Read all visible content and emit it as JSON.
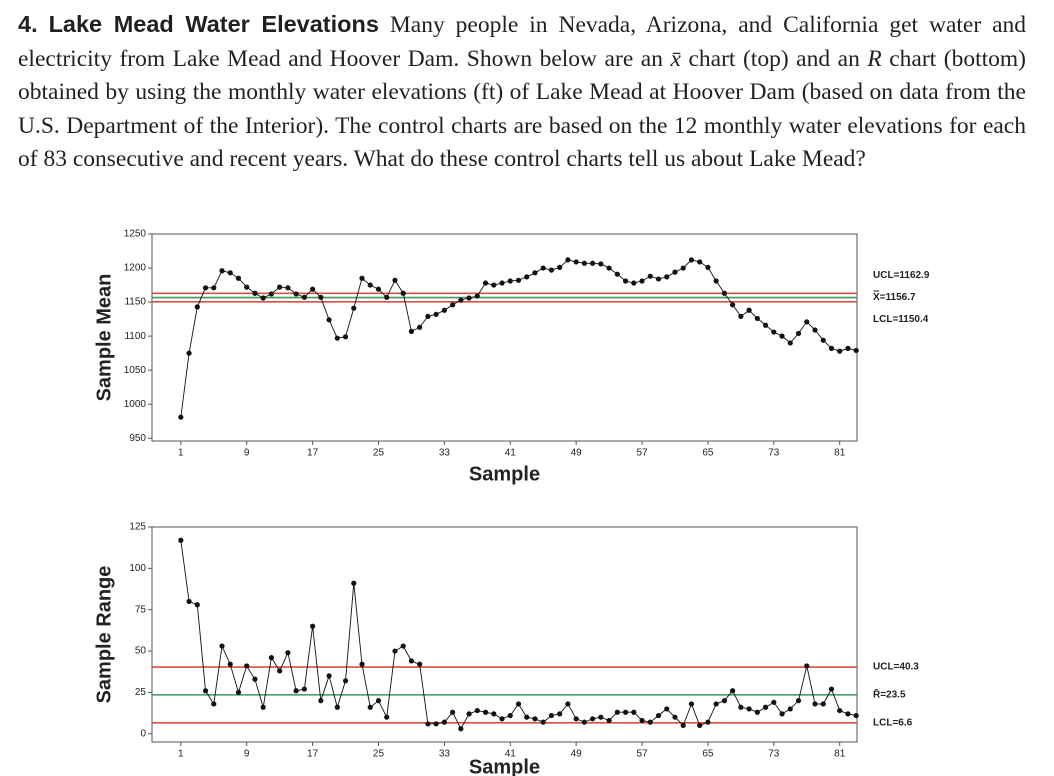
{
  "problem": {
    "number": "4.",
    "title": "Lake Mead Water Elevations",
    "body": [
      {
        "text": "Many people in Nevada, Arizona, and California get water and electricity from Lake Mead and Hoover Dam. Shown below are an ",
        "italic": false
      },
      {
        "text": "x̄",
        "italic": true
      },
      {
        "text": " chart (top) and an ",
        "italic": false
      },
      {
        "text": "R",
        "italic": true
      },
      {
        "text": " chart (bottom) obtained by using the monthly water elevations (ft) of Lake Mead at Hoover Dam (based on data from the U.S. Department of the Interior). The control charts are based on the 12 monthly water elevations for each of 83 consecutive and recent years. What do these control charts tell us about Lake Mead?",
        "italic": false
      }
    ]
  },
  "chart_data": [
    {
      "type": "line",
      "xlabel": "Sample",
      "ylabel": "Sample Mean",
      "x": [
        1,
        2,
        3,
        4,
        5,
        6,
        7,
        8,
        9,
        10,
        11,
        12,
        13,
        14,
        15,
        16,
        17,
        18,
        19,
        20,
        21,
        22,
        23,
        24,
        25,
        26,
        27,
        28,
        29,
        30,
        31,
        32,
        33,
        34,
        35,
        36,
        37,
        38,
        39,
        40,
        41,
        42,
        43,
        44,
        45,
        46,
        47,
        48,
        49,
        50,
        51,
        52,
        53,
        54,
        55,
        56,
        57,
        58,
        59,
        60,
        61,
        62,
        63,
        64,
        65,
        66,
        67,
        68,
        69,
        70,
        71,
        72,
        73,
        74,
        75,
        76,
        77,
        78,
        79,
        80,
        81,
        82,
        83
      ],
      "series": [
        {
          "name": "Sample Mean",
          "color": "#111111",
          "values": [
            981,
            1075,
            1143,
            1171,
            1171,
            1196,
            1193,
            1185,
            1172,
            1163,
            1156,
            1162,
            1172,
            1171,
            1162,
            1157,
            1169,
            1157,
            1124,
            1097,
            1099,
            1141,
            1185,
            1175,
            1169,
            1157,
            1182,
            1163,
            1107,
            1113,
            1129,
            1132,
            1138,
            1146,
            1153,
            1156,
            1159,
            1178,
            1175,
            1178,
            1181,
            1182,
            1187,
            1193,
            1200,
            1197,
            1201,
            1212,
            1209,
            1207,
            1207,
            1206,
            1200,
            1191,
            1181,
            1178,
            1181,
            1188,
            1184,
            1187,
            1194,
            1200,
            1212,
            1209,
            1201,
            1181,
            1163,
            1146,
            1129,
            1138,
            1126,
            1116,
            1106,
            1100,
            1090,
            1104,
            1121,
            1109,
            1094,
            1082,
            1078,
            1082,
            1079
          ]
        }
      ],
      "xlim": [
        -2.5,
        83.1
      ],
      "xticks": [
        1,
        9,
        17,
        25,
        33,
        41,
        49,
        57,
        65,
        73,
        81
      ],
      "ylim": [
        946,
        1250
      ],
      "yticks": [
        950,
        1000,
        1050,
        1100,
        1150,
        1200,
        1250
      ],
      "control_lines": [
        {
          "label": "UCL=1162.9",
          "value": 1162.9,
          "color": "#d8503f"
        },
        {
          "label": "X̿=1156.7",
          "value": 1156.7,
          "color": "#3a9a62"
        },
        {
          "label": "LCL=1150.4",
          "value": 1150.4,
          "color": "#d8503f"
        }
      ]
    },
    {
      "type": "line",
      "xlabel": "Sample",
      "ylabel": "Sample Range",
      "x": [
        1,
        2,
        3,
        4,
        5,
        6,
        7,
        8,
        9,
        10,
        11,
        12,
        13,
        14,
        15,
        16,
        17,
        18,
        19,
        20,
        21,
        22,
        23,
        24,
        25,
        26,
        27,
        28,
        29,
        30,
        31,
        32,
        33,
        34,
        35,
        36,
        37,
        38,
        39,
        40,
        41,
        42,
        43,
        44,
        45,
        46,
        47,
        48,
        49,
        50,
        51,
        52,
        53,
        54,
        55,
        56,
        57,
        58,
        59,
        60,
        61,
        62,
        63,
        64,
        65,
        66,
        67,
        68,
        69,
        70,
        71,
        72,
        73,
        74,
        75,
        76,
        77,
        78,
        79,
        80,
        81,
        82,
        83
      ],
      "series": [
        {
          "name": "Sample Range",
          "color": "#111111",
          "values": [
            117,
            80,
            78,
            26,
            18,
            53,
            42,
            25,
            41,
            33,
            16,
            46,
            38,
            49,
            26,
            27,
            65,
            20,
            35,
            16,
            32,
            91,
            42,
            16,
            20,
            10,
            50,
            53,
            44,
            42,
            6,
            6,
            7,
            13,
            3,
            12,
            14,
            13,
            12,
            9,
            11,
            18,
            10,
            9,
            7,
            11,
            12,
            18,
            9,
            7,
            9,
            10,
            8,
            13,
            13,
            13,
            8,
            7,
            11,
            15,
            10,
            5,
            18,
            5,
            7,
            18,
            20,
            26,
            16,
            15,
            13,
            16,
            19,
            12,
            15,
            20,
            41,
            18,
            18,
            27,
            14,
            12,
            11
          ]
        }
      ],
      "xlim": [
        -2.5,
        83.1
      ],
      "xticks": [
        1,
        9,
        17,
        25,
        33,
        41,
        49,
        57,
        65,
        73,
        81
      ],
      "ylim": [
        -5,
        125
      ],
      "yticks": [
        0,
        25,
        50,
        75,
        100,
        125
      ],
      "control_lines": [
        {
          "label": "UCL=40.3",
          "value": 40.3,
          "color": "#d8503f"
        },
        {
          "label": "R̄=23.5",
          "value": 23.5,
          "color": "#3a9a62"
        },
        {
          "label": "LCL=6.6",
          "value": 6.6,
          "color": "#d8503f"
        }
      ]
    }
  ]
}
